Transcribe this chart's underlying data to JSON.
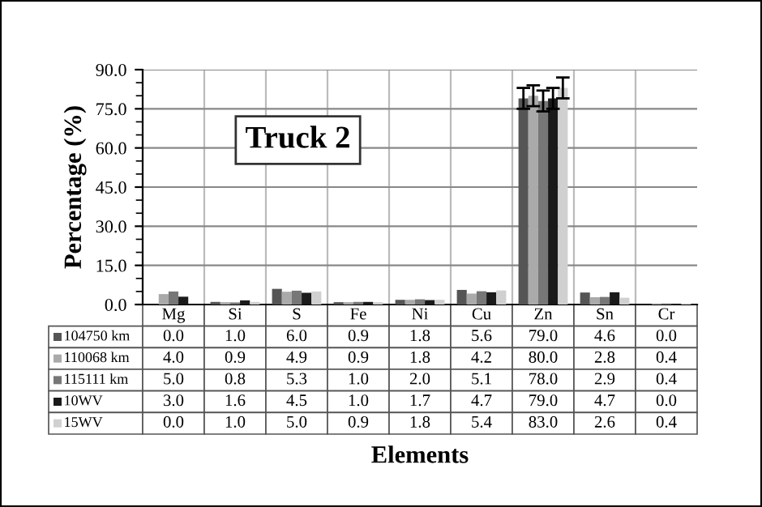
{
  "chart_data": {
    "type": "bar",
    "xlabel": "Elements",
    "ylabel": "Percentage (%)",
    "categories": [
      "Mg",
      "Si",
      "S",
      "Fe",
      "Ni",
      "Cu",
      "Zn",
      "Sn",
      "Cr"
    ],
    "series": [
      {
        "name": "104750 km",
        "color": "#555555",
        "values": [
          0.0,
          1.0,
          6.0,
          0.9,
          1.8,
          5.6,
          79.0,
          4.6,
          0.0
        ],
        "value_labels": [
          "0.0",
          "1.0",
          "6.0",
          "0.9",
          "1.8",
          "5.6",
          "79.0",
          "4.6",
          "0.0"
        ],
        "errors": [
          null,
          null,
          null,
          null,
          null,
          null,
          4,
          null,
          null
        ]
      },
      {
        "name": "110068 km",
        "color": "#aaaaaa",
        "values": [
          4.0,
          0.9,
          4.9,
          0.9,
          1.8,
          4.2,
          80.0,
          2.8,
          0.4
        ],
        "value_labels": [
          "4.0",
          "0.9",
          "4.9",
          "0.9",
          "1.8",
          "4.2",
          "80.0",
          "2.8",
          "0.4"
        ],
        "errors": [
          null,
          null,
          null,
          null,
          null,
          null,
          4,
          null,
          null
        ]
      },
      {
        "name": "115111 km",
        "color": "#777777",
        "values": [
          5.0,
          0.8,
          5.3,
          1.0,
          2.0,
          5.1,
          78.0,
          2.9,
          0.4
        ],
        "value_labels": [
          "5.0",
          "0.8",
          "5.3",
          "1.0",
          "2.0",
          "5.1",
          "78.0",
          "2.9",
          "0.4"
        ],
        "errors": [
          null,
          null,
          null,
          null,
          null,
          null,
          4,
          null,
          null
        ]
      },
      {
        "name": "10WV",
        "color": "#1a1a1a",
        "values": [
          3.0,
          1.6,
          4.5,
          1.0,
          1.7,
          4.7,
          79.0,
          4.7,
          0.0
        ],
        "value_labels": [
          "3.0",
          "1.6",
          "4.5",
          "1.0",
          "1.7",
          "4.7",
          "79.0",
          "4.7",
          "0.0"
        ],
        "errors": [
          null,
          null,
          null,
          null,
          null,
          null,
          4,
          null,
          null
        ]
      },
      {
        "name": "15WV",
        "color": "#d0d0d0",
        "values": [
          0.0,
          1.0,
          5.0,
          0.9,
          1.8,
          5.4,
          83.0,
          2.6,
          0.4
        ],
        "value_labels": [
          "0.0",
          "1.0",
          "5.0",
          "0.9",
          "1.8",
          "5.4",
          "83.0",
          "2.6",
          "0.4"
        ],
        "errors": [
          null,
          null,
          null,
          null,
          null,
          null,
          4,
          null,
          null
        ]
      }
    ],
    "ylim": [
      0,
      90
    ],
    "yticks": [
      {
        "value": 0,
        "label": "0.0"
      },
      {
        "value": 15,
        "label": "15.0"
      },
      {
        "value": 30,
        "label": "30.0"
      },
      {
        "value": 45,
        "label": "45.0"
      },
      {
        "value": 60,
        "label": "60.0"
      },
      {
        "value": 75,
        "label": "75.0"
      },
      {
        "value": 90,
        "label": "90.0"
      }
    ],
    "annotations": [
      "Truck 2"
    ],
    "grid": true,
    "legend": "bottom"
  }
}
